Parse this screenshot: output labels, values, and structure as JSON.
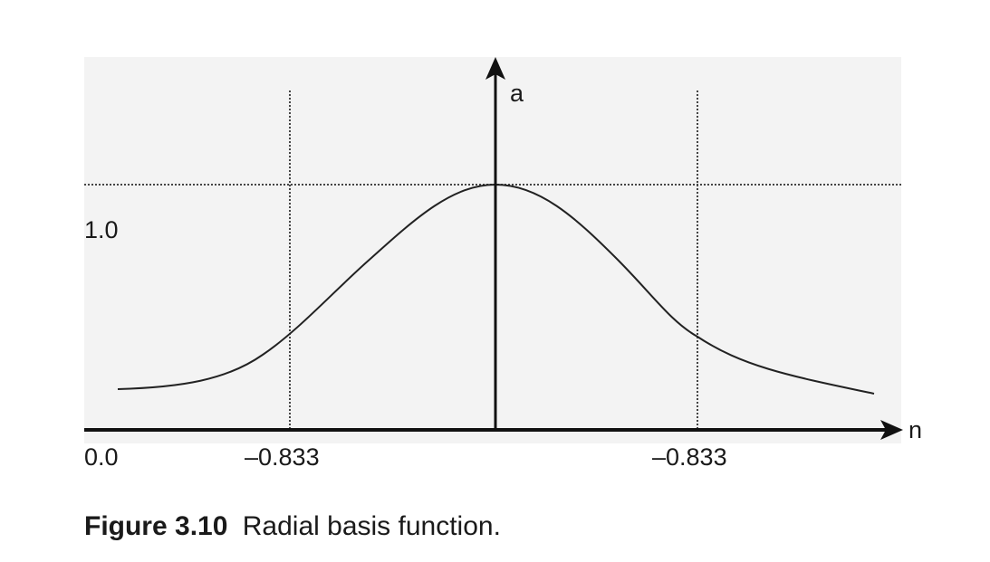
{
  "figure": {
    "axis_labels": {
      "y": "a",
      "x": "n"
    },
    "tick_labels": {
      "peak": "1.0",
      "origin": "0.0",
      "left": "–0.833",
      "right": "–0.833"
    },
    "caption": {
      "number": "Figure 3.10",
      "text": "Radial basis function."
    }
  }
}
